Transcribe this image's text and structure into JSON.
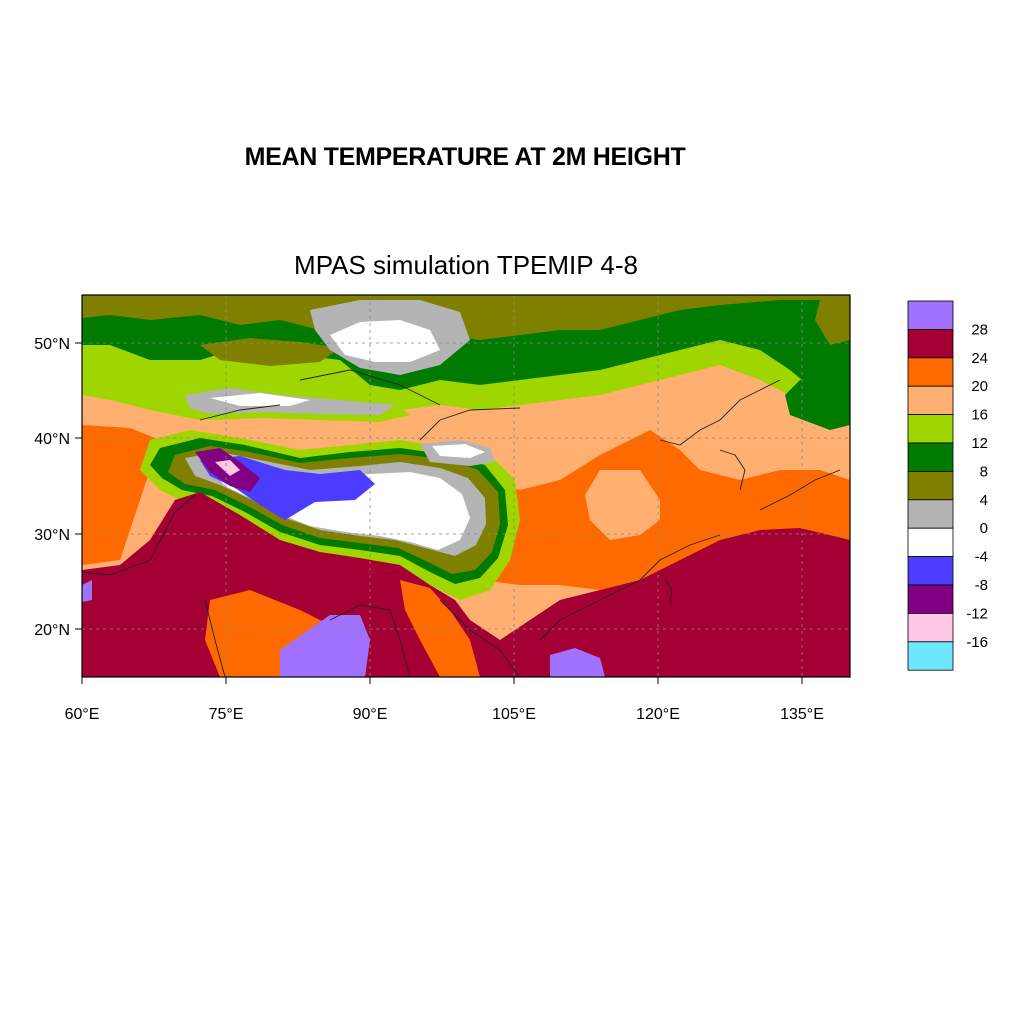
{
  "title": "MEAN TEMPERATURE AT 2M HEIGHT",
  "subtitle": "MPAS simulation TPEMIP 4-8",
  "map": {
    "lon_range": [
      60,
      140
    ],
    "lat_range": [
      15,
      55
    ],
    "lon_ticks": [
      {
        "value": 60,
        "label": "60°E"
      },
      {
        "value": 75,
        "label": "75°E"
      },
      {
        "value": 90,
        "label": "90°E"
      },
      {
        "value": 105,
        "label": "105°E"
      },
      {
        "value": 120,
        "label": "120°E"
      },
      {
        "value": 135,
        "label": "135°E"
      }
    ],
    "lat_ticks": [
      {
        "value": 20,
        "label": "20°N"
      },
      {
        "value": 30,
        "label": "30°N"
      },
      {
        "value": 40,
        "label": "40°N"
      },
      {
        "value": 50,
        "label": "50°N"
      }
    ],
    "gridlines": true,
    "colors": {
      "gt28": "#a070ff",
      "24_28": "#a50034",
      "20_24": "#ff6a00",
      "16_20": "#ffb070",
      "12_16": "#a0d600",
      "8_12": "#007a00",
      "4_8": "#808000",
      "0_4": "#b4b4b4",
      "m4_0": "#ffffff",
      "m8_m4": "#4b3cff",
      "m12_m8": "#820082",
      "m16_m12": "#ffc8e6",
      "lt_m16": "#6ee6ff"
    }
  },
  "colorbar": {
    "position": "right",
    "levels": [
      "28",
      "24",
      "20",
      "16",
      "12",
      "8",
      "4",
      "0",
      "-4",
      "-8",
      "-12",
      "-16"
    ],
    "colors": [
      "#a070ff",
      "#a50034",
      "#ff6a00",
      "#ffb070",
      "#a0d600",
      "#007a00",
      "#808000",
      "#b4b4b4",
      "#ffffff",
      "#4b3cff",
      "#820082",
      "#ffc8e6",
      "#6ee6ff"
    ]
  }
}
